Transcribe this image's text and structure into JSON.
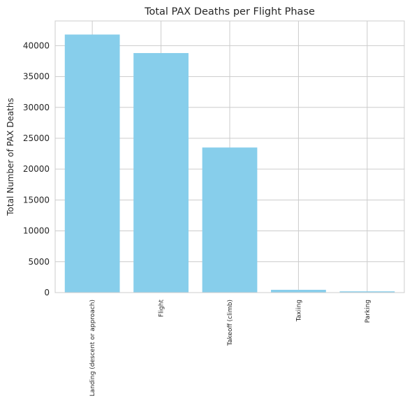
{
  "chart_data": {
    "type": "bar",
    "title": "Total PAX Deaths per Flight Phase",
    "xlabel": "",
    "ylabel": "Total Number of PAX Deaths",
    "categories": [
      "Landing (descent or approach)",
      "Flight",
      "Takeoff (climb)",
      "Taxiing",
      "Parking"
    ],
    "values": [
      41800,
      38800,
      23500,
      450,
      200
    ],
    "ylim": [
      0,
      44000
    ],
    "yticks": [
      0,
      5000,
      10000,
      15000,
      20000,
      25000,
      30000,
      35000,
      40000
    ],
    "grid": true,
    "legend": "none",
    "bar_color": "#87ceeb"
  }
}
